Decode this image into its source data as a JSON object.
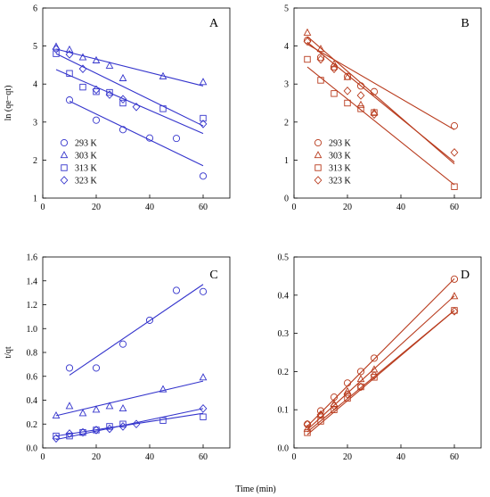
{
  "figure": {
    "xlabel": "Time (min)"
  },
  "chart_data": [
    {
      "panel": "A",
      "type": "scatter",
      "color": "#3434cc",
      "ylabel": "ln (qe−qt)",
      "xlim": [
        0,
        70
      ],
      "ylim": [
        1,
        6
      ],
      "xticks": [
        0,
        20,
        40,
        60
      ],
      "yticks": [
        1,
        2,
        3,
        4,
        5,
        6
      ],
      "legend": "lower-left",
      "series": [
        {
          "name": "293 K",
          "marker": "circle",
          "x": [
            10,
            20,
            30,
            40,
            50,
            60
          ],
          "y": [
            3.58,
            3.05,
            2.8,
            2.58,
            2.57,
            1.58
          ],
          "fit": [
            [
              10,
              3.55
            ],
            [
              60,
              1.85
            ]
          ]
        },
        {
          "name": "303 K",
          "marker": "triangle",
          "x": [
            5,
            10,
            15,
            20,
            25,
            30,
            45,
            60
          ],
          "y": [
            4.98,
            4.9,
            4.7,
            4.62,
            4.48,
            4.15,
            4.2,
            4.05
          ],
          "fit": [
            [
              5,
              4.92
            ],
            [
              60,
              3.95
            ]
          ]
        },
        {
          "name": "313 K",
          "marker": "square",
          "x": [
            5,
            10,
            15,
            20,
            25,
            30,
            45,
            60
          ],
          "y": [
            4.8,
            4.28,
            3.92,
            3.8,
            3.78,
            3.5,
            3.35,
            3.1
          ],
          "fit": [
            [
              5,
              4.38
            ],
            [
              60,
              2.7
            ]
          ]
        },
        {
          "name": "323 K",
          "marker": "diamond",
          "x": [
            5,
            10,
            15,
            20,
            25,
            30,
            35,
            60
          ],
          "y": [
            4.92,
            4.78,
            4.4,
            3.85,
            3.72,
            3.6,
            3.4,
            2.95
          ],
          "fit": [
            [
              5,
              4.8
            ],
            [
              60,
              2.9
            ]
          ]
        }
      ]
    },
    {
      "panel": "B",
      "type": "scatter",
      "color": "#b83a1c",
      "ylabel": "",
      "xlim": [
        0,
        70
      ],
      "ylim": [
        0,
        5
      ],
      "xticks": [
        0,
        20,
        40,
        60
      ],
      "yticks": [
        0,
        1,
        2,
        3,
        4,
        5
      ],
      "legend": "lower-left",
      "series": [
        {
          "name": "293 K",
          "marker": "circle",
          "x": [
            5,
            10,
            15,
            20,
            25,
            30,
            60
          ],
          "y": [
            4.15,
            3.7,
            3.45,
            3.2,
            2.95,
            2.8,
            1.9
          ],
          "fit": [
            [
              5,
              4.05
            ],
            [
              60,
              1.8
            ]
          ]
        },
        {
          "name": "303 K",
          "marker": "triangle",
          "x": [
            5,
            10,
            15,
            20,
            25,
            30
          ],
          "y": [
            4.35,
            3.92,
            3.52,
            3.18,
            2.45,
            2.25
          ],
          "fit": [
            [
              5,
              4.25
            ],
            [
              60,
              0.9
            ]
          ]
        },
        {
          "name": "313 K",
          "marker": "square",
          "x": [
            5,
            10,
            15,
            20,
            25,
            30,
            60
          ],
          "y": [
            3.65,
            3.1,
            2.75,
            2.5,
            2.35,
            2.25,
            0.3
          ],
          "fit": [
            [
              5,
              3.45
            ],
            [
              60,
              0.35
            ]
          ]
        },
        {
          "name": "323 K",
          "marker": "diamond",
          "x": [
            5,
            10,
            15,
            20,
            25,
            30,
            60
          ],
          "y": [
            4.12,
            3.65,
            3.4,
            2.82,
            2.7,
            2.2,
            1.2
          ],
          "fit": [
            [
              5,
              4.1
            ],
            [
              60,
              0.95
            ]
          ]
        }
      ]
    },
    {
      "panel": "C",
      "type": "scatter",
      "color": "#3434cc",
      "ylabel": "t/qt",
      "xlim": [
        0,
        70
      ],
      "ylim": [
        0,
        1.6
      ],
      "xticks": [
        0,
        20,
        40,
        60
      ],
      "yticks": [
        0,
        0.2,
        0.4,
        0.6,
        0.8,
        1.0,
        1.2,
        1.4,
        1.6
      ],
      "legend": "none",
      "series": [
        {
          "name": "293 K",
          "marker": "circle",
          "x": [
            10,
            20,
            30,
            40,
            50,
            60
          ],
          "y": [
            0.67,
            0.67,
            0.87,
            1.07,
            1.32,
            1.31
          ],
          "fit": [
            [
              10,
              0.61
            ],
            [
              60,
              1.37
            ]
          ]
        },
        {
          "name": "303 K",
          "marker": "triangle",
          "x": [
            5,
            10,
            15,
            20,
            25,
            30,
            45,
            60
          ],
          "y": [
            0.27,
            0.35,
            0.29,
            0.32,
            0.35,
            0.33,
            0.49,
            0.59
          ],
          "fit": [
            [
              5,
              0.27
            ],
            [
              60,
              0.56
            ]
          ]
        },
        {
          "name": "313 K",
          "marker": "square",
          "x": [
            5,
            10,
            15,
            20,
            25,
            30,
            45,
            60
          ],
          "y": [
            0.1,
            0.1,
            0.13,
            0.15,
            0.18,
            0.2,
            0.23,
            0.26
          ],
          "fit": [
            [
              5,
              0.1
            ],
            [
              60,
              0.29
            ]
          ]
        },
        {
          "name": "323 K",
          "marker": "diamond",
          "x": [
            5,
            10,
            15,
            20,
            25,
            30,
            35,
            60
          ],
          "y": [
            0.08,
            0.12,
            0.13,
            0.15,
            0.16,
            0.18,
            0.2,
            0.33
          ],
          "fit": [
            [
              5,
              0.07
            ],
            [
              60,
              0.33
            ]
          ]
        }
      ]
    },
    {
      "panel": "D",
      "type": "scatter",
      "color": "#b83a1c",
      "ylabel": "",
      "xlim": [
        0,
        70
      ],
      "ylim": [
        0,
        0.5
      ],
      "xticks": [
        0,
        20,
        40,
        60
      ],
      "yticks": [
        0,
        0.1,
        0.2,
        0.3,
        0.4,
        0.5
      ],
      "legend": "none",
      "series": [
        {
          "name": "293 K",
          "marker": "circle",
          "x": [
            5,
            10,
            15,
            20,
            25,
            30,
            60
          ],
          "y": [
            0.062,
            0.097,
            0.133,
            0.17,
            0.2,
            0.235,
            0.442
          ],
          "fit": [
            [
              5,
              0.057
            ],
            [
              60,
              0.443
            ]
          ]
        },
        {
          "name": "303 K",
          "marker": "triangle",
          "x": [
            5,
            10,
            15,
            20,
            25,
            30,
            60
          ],
          "y": [
            0.05,
            0.087,
            0.115,
            0.148,
            0.18,
            0.205,
            0.397
          ],
          "fit": [
            [
              5,
              0.048
            ],
            [
              60,
              0.398
            ]
          ]
        },
        {
          "name": "313 K",
          "marker": "square",
          "x": [
            5,
            10,
            15,
            20,
            25,
            30,
            60
          ],
          "y": [
            0.04,
            0.07,
            0.1,
            0.13,
            0.16,
            0.185,
            0.36
          ],
          "fit": [
            [
              5,
              0.035
            ],
            [
              60,
              0.36
            ]
          ]
        },
        {
          "name": "323 K",
          "marker": "diamond",
          "x": [
            5,
            10,
            15,
            20,
            25,
            30,
            60
          ],
          "y": [
            0.062,
            0.087,
            0.11,
            0.14,
            0.16,
            0.19,
            0.358
          ],
          "fit": [
            [
              5,
              0.042
            ],
            [
              60,
              0.36
            ]
          ]
        }
      ]
    }
  ]
}
